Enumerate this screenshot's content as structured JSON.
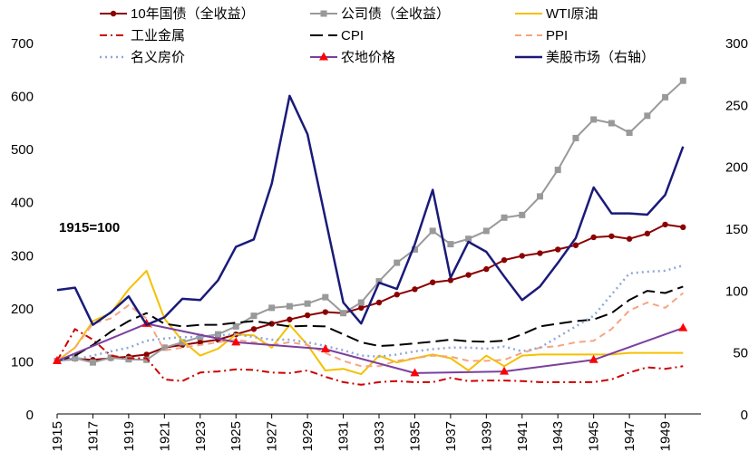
{
  "chart_data": {
    "type": "line",
    "title": "",
    "annotation": "1915=100",
    "annotation_color": "#e00000",
    "left_axis": {
      "ylim": [
        0,
        700
      ],
      "ticks": [
        0,
        100,
        200,
        300,
        400,
        500,
        600,
        700
      ]
    },
    "right_axis": {
      "ylim": [
        0,
        300
      ],
      "ticks": [
        0,
        50,
        100,
        150,
        200,
        250,
        300
      ]
    },
    "x_ticks": [
      1915,
      1917,
      1919,
      1921,
      1923,
      1925,
      1927,
      1929,
      1931,
      1933,
      1935,
      1937,
      1939,
      1941,
      1943,
      1945,
      1947,
      1949
    ],
    "x_range": [
      1915,
      1951
    ],
    "series": [
      {
        "name": "10年国债（全收益）",
        "color": "#8b0000",
        "dash": "",
        "marker": "circle",
        "axis": "left",
        "width": 2,
        "x": [
          1915,
          1916,
          1917,
          1918,
          1919,
          1920,
          1921,
          1922,
          1923,
          1924,
          1925,
          1926,
          1927,
          1928,
          1929,
          1930,
          1931,
          1932,
          1933,
          1934,
          1935,
          1936,
          1937,
          1938,
          1939,
          1940,
          1941,
          1942,
          1943,
          1944,
          1945,
          1946,
          1947,
          1948,
          1949,
          1950
        ],
        "values": [
          100,
          104,
          102,
          105,
          108,
          112,
          125,
          130,
          135,
          140,
          150,
          160,
          170,
          178,
          186,
          192,
          190,
          200,
          210,
          225,
          235,
          248,
          252,
          262,
          273,
          290,
          298,
          303,
          310,
          318,
          333,
          335,
          330,
          340,
          357,
          352
        ]
      },
      {
        "name": "公司债（全收益）",
        "color": "#999999",
        "dash": "",
        "marker": "square",
        "axis": "left",
        "width": 2,
        "x": [
          1915,
          1916,
          1917,
          1918,
          1919,
          1920,
          1921,
          1922,
          1923,
          1924,
          1925,
          1926,
          1927,
          1928,
          1929,
          1930,
          1931,
          1932,
          1933,
          1934,
          1935,
          1936,
          1937,
          1938,
          1939,
          1940,
          1941,
          1942,
          1943,
          1944,
          1945,
          1946,
          1947,
          1948,
          1949,
          1950
        ],
        "values": [
          100,
          105,
          97,
          106,
          103,
          102,
          125,
          135,
          145,
          150,
          165,
          185,
          200,
          203,
          208,
          220,
          190,
          210,
          250,
          285,
          310,
          345,
          320,
          330,
          345,
          370,
          375,
          410,
          460,
          520,
          555,
          548,
          530,
          562,
          597,
          628
        ]
      },
      {
        "name": "WTI原油",
        "color": "#f5c000",
        "dash": "",
        "marker": "",
        "axis": "left",
        "width": 2,
        "x": [
          1915,
          1916,
          1917,
          1918,
          1919,
          1920,
          1921,
          1922,
          1923,
          1924,
          1925,
          1926,
          1927,
          1928,
          1929,
          1930,
          1931,
          1932,
          1933,
          1934,
          1935,
          1936,
          1937,
          1938,
          1939,
          1940,
          1941,
          1942,
          1943,
          1944,
          1945,
          1946,
          1947,
          1948,
          1949,
          1950
        ],
        "values": [
          100,
          125,
          175,
          190,
          235,
          270,
          180,
          138,
          110,
          123,
          150,
          148,
          125,
          168,
          130,
          82,
          85,
          75,
          110,
          97,
          105,
          112,
          105,
          82,
          110,
          90,
          110,
          112,
          112,
          112,
          112,
          112,
          115,
          115,
          115,
          115
        ]
      },
      {
        "name": "工业金属",
        "color": "#cc0000",
        "dash": "8,4,2,4",
        "marker": "",
        "axis": "left",
        "width": 2,
        "x": [
          1915,
          1916,
          1917,
          1918,
          1919,
          1920,
          1921,
          1922,
          1923,
          1924,
          1925,
          1926,
          1927,
          1928,
          1929,
          1930,
          1931,
          1932,
          1933,
          1934,
          1935,
          1936,
          1937,
          1938,
          1939,
          1940,
          1941,
          1942,
          1943,
          1944,
          1945,
          1946,
          1947,
          1948,
          1949,
          1950
        ],
        "values": [
          100,
          160,
          140,
          110,
          105,
          105,
          65,
          62,
          78,
          80,
          84,
          83,
          78,
          77,
          82,
          70,
          60,
          55,
          60,
          62,
          60,
          60,
          68,
          62,
          63,
          63,
          62,
          60,
          60,
          60,
          60,
          65,
          78,
          88,
          85,
          90
        ]
      },
      {
        "name": "CPI",
        "color": "#000000",
        "dash": "14,6",
        "marker": "",
        "axis": "left",
        "width": 2,
        "x": [
          1915,
          1916,
          1917,
          1918,
          1919,
          1920,
          1921,
          1922,
          1923,
          1924,
          1925,
          1926,
          1927,
          1928,
          1929,
          1930,
          1931,
          1932,
          1933,
          1934,
          1935,
          1936,
          1937,
          1938,
          1939,
          1940,
          1941,
          1942,
          1943,
          1944,
          1945,
          1946,
          1947,
          1948,
          1949,
          1950
        ],
        "values": [
          100,
          110,
          130,
          155,
          175,
          190,
          170,
          165,
          168,
          168,
          172,
          175,
          170,
          165,
          166,
          165,
          150,
          135,
          128,
          130,
          133,
          136,
          140,
          137,
          136,
          138,
          150,
          165,
          170,
          175,
          178,
          190,
          215,
          232,
          228,
          240
        ]
      },
      {
        "name": "PPI",
        "color": "#f4a582",
        "dash": "7,5",
        "marker": "",
        "axis": "left",
        "width": 2,
        "x": [
          1915,
          1916,
          1917,
          1918,
          1919,
          1920,
          1921,
          1922,
          1923,
          1924,
          1925,
          1926,
          1927,
          1928,
          1929,
          1930,
          1931,
          1932,
          1933,
          1934,
          1935,
          1936,
          1937,
          1938,
          1939,
          1940,
          1941,
          1942,
          1943,
          1944,
          1945,
          1946,
          1947,
          1948,
          1949,
          1950
        ],
        "values": [
          100,
          125,
          170,
          180,
          205,
          180,
          120,
          125,
          130,
          135,
          140,
          135,
          130,
          135,
          130,
          115,
          100,
          90,
          90,
          100,
          105,
          110,
          108,
          100,
          100,
          102,
          115,
          125,
          128,
          135,
          138,
          160,
          195,
          210,
          200,
          228
        ]
      },
      {
        "name": "名义房价",
        "color": "#8fa8d8",
        "dash": "2,4",
        "marker": "",
        "axis": "left",
        "width": 2.5,
        "x": [
          1915,
          1916,
          1917,
          1918,
          1919,
          1920,
          1921,
          1922,
          1923,
          1924,
          1925,
          1926,
          1927,
          1928,
          1929,
          1930,
          1931,
          1932,
          1933,
          1934,
          1935,
          1936,
          1937,
          1938,
          1939,
          1940,
          1941,
          1942,
          1943,
          1944,
          1945,
          1946,
          1947,
          1948,
          1949,
          1950
        ],
        "values": [
          100,
          103,
          110,
          118,
          125,
          138,
          142,
          145,
          145,
          148,
          150,
          145,
          140,
          140,
          135,
          128,
          120,
          110,
          108,
          112,
          118,
          122,
          125,
          125,
          123,
          127,
          118,
          125,
          145,
          165,
          185,
          225,
          265,
          268,
          270,
          280
        ]
      },
      {
        "name": "农地价格",
        "color": "#7b3f9e",
        "dash": "",
        "marker": "triangle",
        "axis": "left",
        "width": 2,
        "x": [
          1915,
          1920,
          1925,
          1930,
          1935,
          1940,
          1945,
          1950
        ],
        "values": [
          100,
          170,
          135,
          122,
          77,
          80,
          102,
          162
        ]
      },
      {
        "name": "美股市场（右轴）",
        "color": "#1a1a7a",
        "dash": "",
        "marker": "",
        "axis": "right",
        "width": 2.5,
        "x": [
          1915,
          1916,
          1917,
          1918,
          1919,
          1920,
          1921,
          1922,
          1923,
          1924,
          1925,
          1926,
          1927,
          1928,
          1929,
          1930,
          1931,
          1932,
          1933,
          1934,
          1935,
          1936,
          1937,
          1938,
          1939,
          1940,
          1941,
          1942,
          1943,
          1944,
          1945,
          1946,
          1947,
          1948,
          1949,
          1950
        ],
        "values": [
          100,
          102,
          72,
          82,
          95,
          72,
          78,
          93,
          92,
          108,
          135,
          141,
          186,
          257,
          226,
          158,
          90,
          73,
          106,
          101,
          137,
          181,
          110,
          139,
          131,
          111,
          92,
          103,
          122,
          142,
          183,
          162,
          162,
          161,
          177,
          216
        ]
      }
    ],
    "legend": [
      {
        "label": "10年国债（全收益）",
        "series": 0
      },
      {
        "label": "公司债（全收益）",
        "series": 1
      },
      {
        "label": "WTI原油",
        "series": 2
      },
      {
        "label": "工业金属",
        "series": 3
      },
      {
        "label": "CPI",
        "series": 4
      },
      {
        "label": "PPI",
        "series": 5
      },
      {
        "label": "名义房价",
        "series": 6
      },
      {
        "label": "农地价格",
        "series": 7
      },
      {
        "label": "美股市场（右轴）",
        "series": 8
      }
    ]
  }
}
